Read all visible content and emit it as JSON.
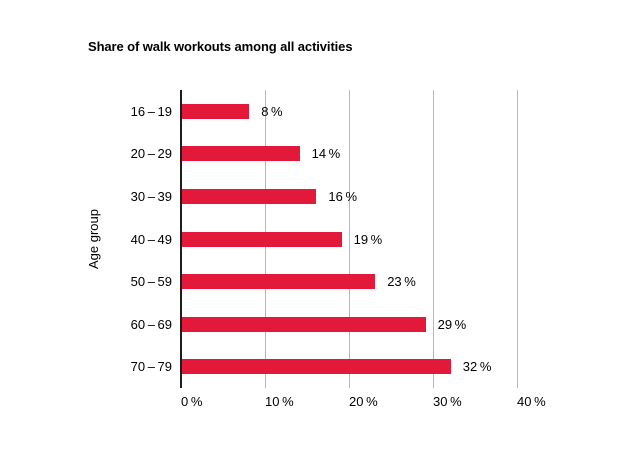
{
  "page": {
    "background_color": "#ffffff",
    "text_color": "#000000"
  },
  "chart_data": {
    "type": "bar",
    "orientation": "horizontal",
    "title": "Share of walk workouts among all activities",
    "ylabel": "Age group",
    "xlabel": "",
    "categories": [
      "16 – 19",
      "20 – 29",
      "30 – 39",
      "40 – 49",
      "50 – 59",
      "60 – 69",
      "70 – 79"
    ],
    "values": [
      8,
      14,
      16,
      19,
      23,
      29,
      32
    ],
    "value_labels": [
      "8 %",
      "14 %",
      "16 %",
      "19 %",
      "23 %",
      "29 %",
      "32 %"
    ],
    "x_ticks": [
      0,
      10,
      20,
      30,
      40
    ],
    "x_tick_labels": [
      "0 %",
      "10 %",
      "20 %",
      "30 %",
      "40 %"
    ],
    "xlim": [
      0,
      40
    ],
    "grid": true,
    "legend": false,
    "bar_color": "#e3193a",
    "axis_line_color": "#1c1c1c",
    "gridline_color": "#b7b7b7"
  }
}
